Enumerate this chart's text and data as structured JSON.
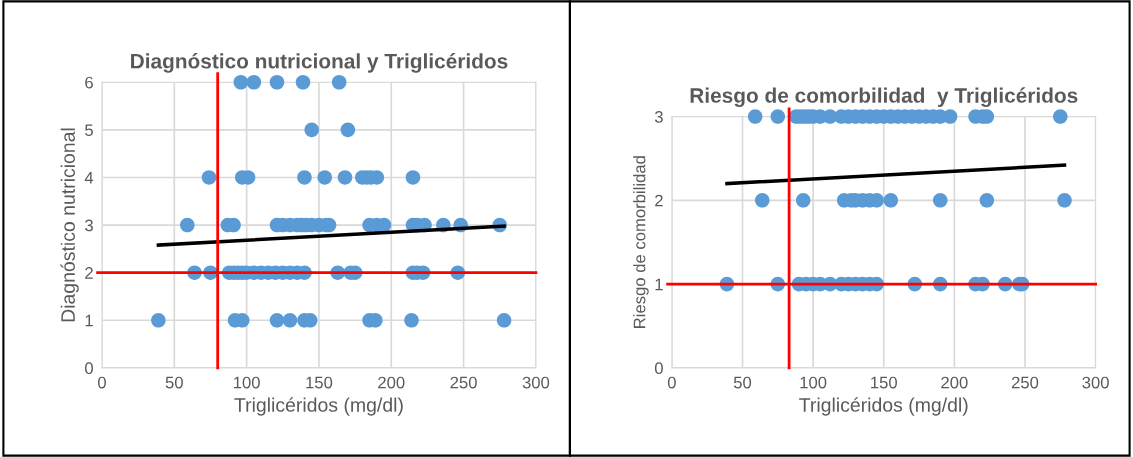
{
  "chart_data": [
    {
      "type": "scatter",
      "title": "Diagnóstico nutricional y Triglicéridos",
      "xlabel": "Triglicéridos (mg/dl)",
      "ylabel": "Diagnóstico nutricional",
      "xlim": [
        0,
        300
      ],
      "xticks": [
        0,
        50,
        100,
        150,
        200,
        250,
        300
      ],
      "ylim": [
        0,
        6
      ],
      "yticks": [
        0,
        1,
        2,
        3,
        4,
        5,
        6
      ],
      "grid": true,
      "series": [
        {
          "marker": "circle",
          "color": "#5b9bd5",
          "x": [
            96,
            105,
            121,
            139,
            164,
            145,
            170,
            74,
            97,
            101,
            140,
            154,
            168,
            180,
            183,
            186,
            190,
            215,
            59,
            87,
            91,
            121,
            125,
            130,
            135,
            138,
            141,
            145,
            150,
            155,
            157,
            185,
            190,
            195,
            215,
            218,
            223,
            236,
            248,
            275,
            64,
            75,
            88,
            91,
            94,
            97,
            100,
            105,
            110,
            115,
            120,
            125,
            130,
            135,
            140,
            163,
            172,
            175,
            215,
            218,
            222,
            246,
            39,
            92,
            97,
            121,
            130,
            140,
            144,
            185,
            189,
            214,
            278
          ],
          "values": [
            6,
            6,
            6,
            6,
            6,
            5,
            5,
            4,
            4,
            4,
            4,
            4,
            4,
            4,
            4,
            4,
            4,
            4,
            3,
            3,
            3,
            3,
            3,
            3,
            3,
            3,
            3,
            3,
            3,
            3,
            3,
            3,
            3,
            3,
            3,
            3,
            3,
            3,
            3,
            3,
            2,
            2,
            2,
            2,
            2,
            2,
            2,
            2,
            2,
            2,
            2,
            2,
            2,
            2,
            2,
            2,
            2,
            2,
            2,
            2,
            2,
            2,
            1,
            1,
            1,
            1,
            1,
            1,
            1,
            1,
            1,
            1,
            1
          ]
        },
        {
          "type": "line",
          "color": "#000000",
          "x": [
            39,
            278
          ],
          "values": [
            2.58,
            2.98
          ]
        }
      ],
      "ref_lines": [
        {
          "axis": "x",
          "value": 80,
          "color": "#ff0000"
        },
        {
          "axis": "y",
          "value": 2,
          "color": "#ff0000"
        }
      ]
    },
    {
      "type": "scatter",
      "title": "Riesgo de comorbilidad  y Triglicéridos",
      "xlabel": "Triglicéridos (mg/dl)",
      "ylabel": "Riesgo de comorbilidad",
      "xlim": [
        0,
        300
      ],
      "xticks": [
        0,
        50,
        100,
        150,
        200,
        250,
        300
      ],
      "ylim": [
        0,
        3
      ],
      "yticks": [
        0,
        1,
        2,
        3
      ],
      "grid": true,
      "series": [
        {
          "marker": "circle",
          "color": "#5b9bd5",
          "x": [
            59,
            75,
            88,
            91,
            94,
            97,
            100,
            105,
            112,
            120,
            125,
            130,
            135,
            140,
            145,
            150,
            155,
            160,
            165,
            170,
            175,
            180,
            185,
            190,
            197,
            215,
            220,
            223,
            275,
            64,
            93,
            122,
            127,
            130,
            135,
            140,
            145,
            155,
            190,
            223,
            278,
            39,
            75,
            90,
            95,
            100,
            105,
            112,
            120,
            125,
            130,
            135,
            140,
            145,
            172,
            190,
            215,
            220,
            236,
            246,
            248
          ],
          "values": [
            3,
            3,
            3,
            3,
            3,
            3,
            3,
            3,
            3,
            3,
            3,
            3,
            3,
            3,
            3,
            3,
            3,
            3,
            3,
            3,
            3,
            3,
            3,
            3,
            3,
            3,
            3,
            3,
            3,
            2,
            2,
            2,
            2,
            2,
            2,
            2,
            2,
            2,
            2,
            2,
            2,
            1,
            1,
            1,
            1,
            1,
            1,
            1,
            1,
            1,
            1,
            1,
            1,
            1,
            1,
            1,
            1,
            1,
            1,
            1,
            1
          ]
        },
        {
          "type": "line",
          "color": "#000000",
          "x": [
            39,
            278
          ],
          "values": [
            2.2,
            2.42
          ]
        }
      ],
      "ref_lines": [
        {
          "axis": "x",
          "value": 83,
          "color": "#ff0000"
        },
        {
          "axis": "y",
          "value": 1,
          "color": "#ff0000"
        }
      ]
    }
  ]
}
